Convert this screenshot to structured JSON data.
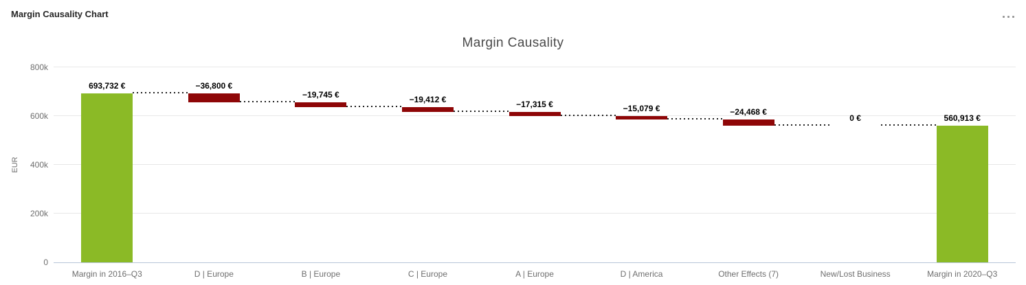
{
  "widget": {
    "header_title": "Margin Causality Chart",
    "overflow_menu_icon": "ellipsis"
  },
  "chart_data": {
    "type": "bar",
    "subtype": "waterfall",
    "title": "Margin Causality",
    "xlabel": "",
    "ylabel": "EUR",
    "ylim": [
      0,
      800000
    ],
    "grid": true,
    "legend": false,
    "colors": {
      "total_bar": "#8bba26",
      "negative_bar": "#8e0607",
      "connector": "#1f1f1f",
      "gridline": "#e7e7e7",
      "axis_line": "#b6c4d8"
    },
    "yticks": [
      {
        "value": 0,
        "label": "0"
      },
      {
        "value": 200000,
        "label": "200k"
      },
      {
        "value": 400000,
        "label": "400k"
      },
      {
        "value": 600000,
        "label": "600k"
      },
      {
        "value": 800000,
        "label": "800k"
      }
    ],
    "points": [
      {
        "category": "Margin in 2016–Q3",
        "value": 693732,
        "display": "693,732 €",
        "kind": "total"
      },
      {
        "category": "D | Europe",
        "value": -36800,
        "display": "−36,800 €",
        "kind": "delta"
      },
      {
        "category": "B | Europe",
        "value": -19745,
        "display": "−19,745 €",
        "kind": "delta"
      },
      {
        "category": "C | Europe",
        "value": -19412,
        "display": "−19,412 €",
        "kind": "delta"
      },
      {
        "category": "A | Europe",
        "value": -17315,
        "display": "−17,315 €",
        "kind": "delta"
      },
      {
        "category": "D | America",
        "value": -15079,
        "display": "−15,079 €",
        "kind": "delta"
      },
      {
        "category": "Other Effects (7)",
        "value": -24468,
        "display": "−24,468 €",
        "kind": "delta"
      },
      {
        "category": "New/Lost Business",
        "value": 0,
        "display": "0 €",
        "kind": "delta"
      },
      {
        "category": "Margin in 2020–Q3",
        "value": 560913,
        "display": "560,913 €",
        "kind": "total"
      }
    ]
  }
}
